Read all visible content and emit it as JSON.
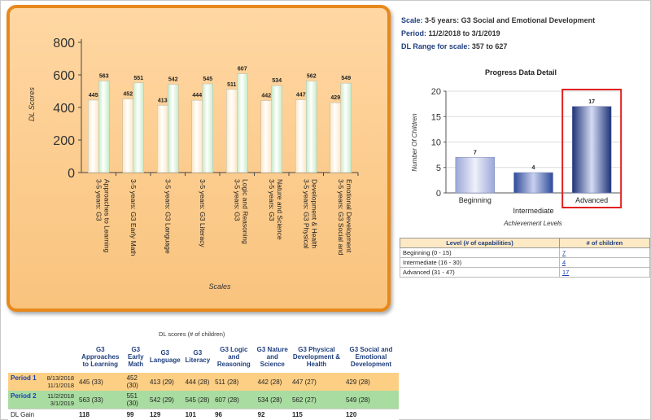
{
  "scale_info": {
    "scale_label": "Scale:",
    "scale_value": "3-5 years: G3 Social and Emotional Development",
    "period_label": "Period:",
    "period_value": "11/2/2018 to 3/1/2019",
    "range_label": "DL Range for scale:",
    "range_value": "357 to 627"
  },
  "chart_data": [
    {
      "type": "bar",
      "ylabel": "DL Scores",
      "xlabel": "Scales",
      "ylim": [
        0,
        800
      ],
      "yticks": [
        "0",
        "200",
        "400",
        "600",
        "800"
      ],
      "categories": [
        [
          "3-5 years: G3",
          "Approaches to Learning"
        ],
        [
          "3-5 years: G3 Early Math"
        ],
        [
          "3-5 years: G3 Language"
        ],
        [
          "3-5 years: G3 Literacy"
        ],
        [
          "3-5 years: G3",
          "Logic and Reasoning"
        ],
        [
          "3-5 years: G3",
          "Nature and Science"
        ],
        [
          "3-5 years: G3 Physical",
          "Development & Health"
        ],
        [
          "3-5 years: G3 Social and",
          "Emotional Development"
        ]
      ],
      "series": [
        {
          "values": [
            445,
            452,
            413,
            444,
            511,
            442,
            447,
            429
          ],
          "color": "#fde7c4"
        },
        {
          "values": [
            563,
            551,
            542,
            545,
            607,
            534,
            562,
            549
          ],
          "color": "#c7ebc7"
        }
      ],
      "grid": false
    },
    {
      "type": "bar",
      "title": "Progress Data Detail",
      "ylabel": "Number Of Children",
      "xlabel": "Achievement Levels",
      "ylim": [
        0,
        20
      ],
      "yticks": [
        "0",
        "5",
        "10",
        "15",
        "20"
      ],
      "categories": [
        "Beginning",
        "Intermediate",
        "Advanced"
      ],
      "values": [
        7,
        4,
        17
      ],
      "highlighted": "Advanced",
      "highlight_color": "#e02020",
      "grid": true
    }
  ],
  "level_table": {
    "headers": [
      "Level (# of capabilities)",
      "# of children"
    ],
    "rows": [
      {
        "level": "Beginning (0 - 15)",
        "count": "7"
      },
      {
        "level": "Intermediate (16 - 30)",
        "count": "4"
      },
      {
        "level": "Advanced (31 - 47)",
        "count": "17"
      }
    ]
  },
  "scores_table": {
    "caption": "DL scores (# of children)",
    "headers": [
      "G3 Approaches to Learning",
      "G3 Early Math",
      "G3 Language",
      "G3 Literacy",
      "G3 Logic and Reasoning",
      "G3 Nature and Science",
      "G3 Physical Development & Health",
      "G3 Social and Emotional Development"
    ],
    "period1": {
      "label": "Period 1",
      "start": "8/13/2018",
      "end": "11/1/2018",
      "values": [
        "445 (33)",
        "452 (30)",
        "413 (29)",
        "444 (28)",
        "511 (28)",
        "442 (28)",
        "447 (27)",
        "429 (28)"
      ]
    },
    "period2": {
      "label": "Period 2",
      "start": "11/2/2018",
      "end": "3/1/2019",
      "values": [
        "563 (33)",
        "551 (30)",
        "542 (29)",
        "545 (28)",
        "607 (28)",
        "534 (28)",
        "562 (27)",
        "549 (28)"
      ]
    },
    "gain": {
      "label": "DL Gain",
      "values": [
        "118",
        "99",
        "129",
        "101",
        "96",
        "92",
        "115",
        "120"
      ]
    }
  }
}
